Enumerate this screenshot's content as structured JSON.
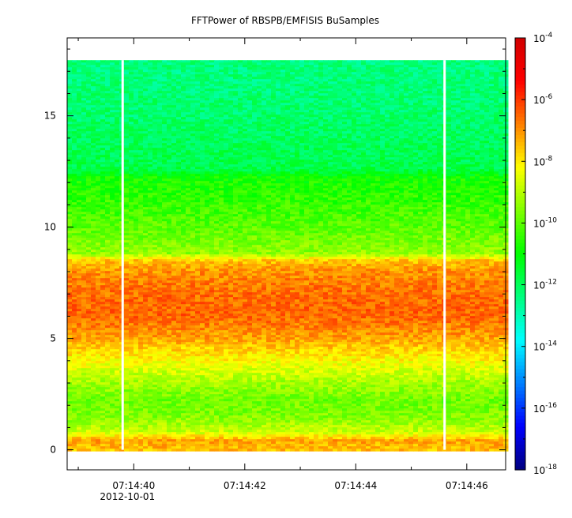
{
  "chart_data": {
    "type": "heatmap",
    "title": "FFTPower of RBSPB/EMFISIS  BuSamples",
    "xlabel": "",
    "ylabel": "",
    "x_axis": {
      "range_seconds_from_label_start": [
        -1.2,
        6.7
      ],
      "ticks": [
        {
          "label": "07:14:40",
          "sublabel": "2012-10-01",
          "value": 0
        },
        {
          "label": "07:14:42",
          "sublabel": "",
          "value": 2
        },
        {
          "label": "07:14:44",
          "sublabel": "",
          "value": 4
        },
        {
          "label": "07:14:46",
          "sublabel": "",
          "value": 6
        }
      ],
      "minor_every": 1
    },
    "y_axis": {
      "ylim": [
        -0.9,
        18.5
      ],
      "ticks": [
        0,
        5,
        10,
        15
      ],
      "minor_every": 1
    },
    "colorbar": {
      "scale": "log",
      "range_exponents": [
        -18,
        -4
      ],
      "tick_exponents": [
        -4,
        -6,
        -8,
        -10,
        -12,
        -14,
        -16,
        -18
      ],
      "base": "10",
      "colors": [
        "#00007f",
        "#0000ff",
        "#007fff",
        "#00ffff",
        "#00ff7f",
        "#00ff00",
        "#7fff00",
        "#ffff00",
        "#ff7f00",
        "#ff0000",
        "#d00000"
      ]
    },
    "data_extent": {
      "y_range": [
        0,
        17.5
      ],
      "gap_columns_seconds": [
        -0.2,
        5.6
      ]
    },
    "power_profile": [
      {
        "y": 0.0,
        "log_power": -7.5
      },
      {
        "y": 0.4,
        "log_power": -7.2
      },
      {
        "y": 0.8,
        "log_power": -8.8
      },
      {
        "y": 1.5,
        "log_power": -9.6
      },
      {
        "y": 2.2,
        "log_power": -9.8
      },
      {
        "y": 3.0,
        "log_power": -9.2
      },
      {
        "y": 4.0,
        "log_power": -8.2
      },
      {
        "y": 5.0,
        "log_power": -7.2
      },
      {
        "y": 6.0,
        "log_power": -6.5
      },
      {
        "y": 7.0,
        "log_power": -6.6
      },
      {
        "y": 8.0,
        "log_power": -7.0
      },
      {
        "y": 8.5,
        "log_power": -7.6
      },
      {
        "y": 8.8,
        "log_power": -9.4
      },
      {
        "y": 10.0,
        "log_power": -10.0
      },
      {
        "y": 11.0,
        "log_power": -10.4
      },
      {
        "y": 12.2,
        "log_power": -10.8
      },
      {
        "y": 12.6,
        "log_power": -11.8
      },
      {
        "y": 15.0,
        "log_power": -12.2
      },
      {
        "y": 17.5,
        "log_power": -12.4
      }
    ]
  }
}
